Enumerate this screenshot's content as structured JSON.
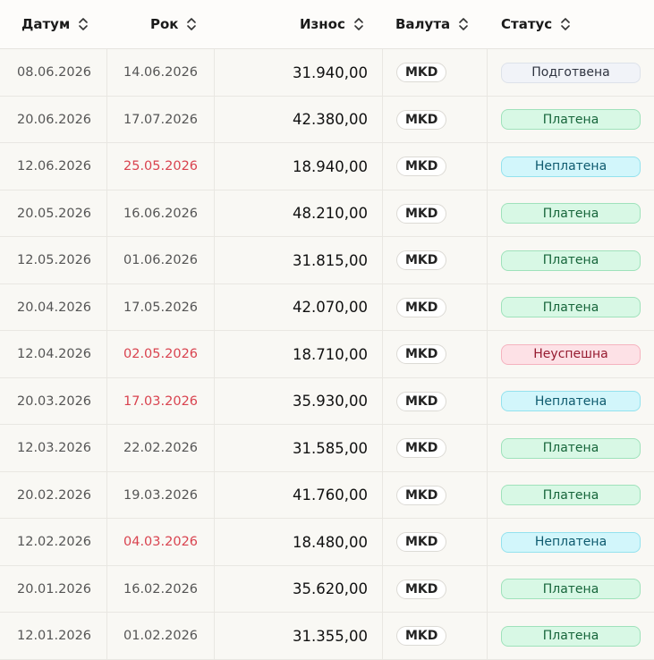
{
  "header": {
    "columns": [
      "Датум",
      "Рок",
      "Износ",
      "Валута",
      "Статус"
    ]
  },
  "table": {
    "rows": [
      {
        "date": "08.06.2026",
        "due": "14.06.2026",
        "due_color": "#555555",
        "amount": "31.940,00",
        "currency": "MKD",
        "status": "Подготвена",
        "status_colors": [
          "#f1f3f8",
          "#dde2ea",
          "#2f3440"
        ]
      },
      {
        "date": "20.06.2026",
        "due": "17.07.2026",
        "due_color": "#555555",
        "amount": "42.380,00",
        "currency": "MKD",
        "status": "Платена",
        "status_colors": [
          "#d8f8e5",
          "#9fe2bb",
          "#16653a"
        ]
      },
      {
        "date": "12.06.2026",
        "due": "25.05.2026",
        "due_color": "#d9434f",
        "amount": "18.940,00",
        "currency": "MKD",
        "status": "Неплатена",
        "status_colors": [
          "#d2f6fb",
          "#94e2ee",
          "#0e5a6e"
        ]
      },
      {
        "date": "20.05.2026",
        "due": "16.06.2026",
        "due_color": "#555555",
        "amount": "48.210,00",
        "currency": "MKD",
        "status": "Платена",
        "status_colors": [
          "#d8f8e5",
          "#9fe2bb",
          "#16653a"
        ]
      },
      {
        "date": "12.05.2026",
        "due": "01.06.2026",
        "due_color": "#555555",
        "amount": "31.815,00",
        "currency": "MKD",
        "status": "Платена",
        "status_colors": [
          "#d8f8e5",
          "#9fe2bb",
          "#16653a"
        ]
      },
      {
        "date": "20.04.2026",
        "due": "17.05.2026",
        "due_color": "#555555",
        "amount": "42.070,00",
        "currency": "MKD",
        "status": "Платена",
        "status_colors": [
          "#d8f8e5",
          "#9fe2bb",
          "#16653a"
        ]
      },
      {
        "date": "12.04.2026",
        "due": "02.05.2026",
        "due_color": "#d9434f",
        "amount": "18.710,00",
        "currency": "MKD",
        "status": "Неуспешна",
        "status_colors": [
          "#fde1e6",
          "#f5b3bf",
          "#961b30"
        ]
      },
      {
        "date": "20.03.2026",
        "due": "17.03.2026",
        "due_color": "#d9434f",
        "amount": "35.930,00",
        "currency": "MKD",
        "status": "Неплатена",
        "status_colors": [
          "#d2f6fb",
          "#94e2ee",
          "#0e5a6e"
        ]
      },
      {
        "date": "12.03.2026",
        "due": "22.02.2026",
        "due_color": "#555555",
        "amount": "31.585,00",
        "currency": "MKD",
        "status": "Платена",
        "status_colors": [
          "#d8f8e5",
          "#9fe2bb",
          "#16653a"
        ]
      },
      {
        "date": "20.02.2026",
        "due": "19.03.2026",
        "due_color": "#555555",
        "amount": "41.760,00",
        "currency": "MKD",
        "status": "Платена",
        "status_colors": [
          "#d8f8e5",
          "#9fe2bb",
          "#16653a"
        ]
      },
      {
        "date": "12.02.2026",
        "due": "04.03.2026",
        "due_color": "#d9434f",
        "amount": "18.480,00",
        "currency": "MKD",
        "status": "Неплатена",
        "status_colors": [
          "#d2f6fb",
          "#94e2ee",
          "#0e5a6e"
        ]
      },
      {
        "date": "20.01.2026",
        "due": "16.02.2026",
        "due_color": "#555555",
        "amount": "35.620,00",
        "currency": "MKD",
        "status": "Платена",
        "status_colors": [
          "#d8f8e5",
          "#9fe2bb",
          "#16653a"
        ]
      },
      {
        "date": "12.01.2026",
        "due": "01.02.2026",
        "due_color": "#555555",
        "amount": "31.355,00",
        "currency": "MKD",
        "status": "Платена",
        "status_colors": [
          "#d8f8e5",
          "#9fe2bb",
          "#16653a"
        ]
      }
    ]
  }
}
